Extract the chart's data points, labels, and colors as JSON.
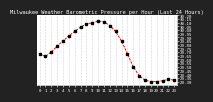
{
  "title": "Milwaukee Weather Barometric Pressure per Hour (Last 24 Hours)",
  "hours": [
    0,
    1,
    2,
    3,
    4,
    5,
    6,
    7,
    8,
    9,
    10,
    11,
    12,
    13,
    14,
    15,
    16,
    17,
    18,
    19,
    20,
    21,
    22,
    23
  ],
  "pressure": [
    29.68,
    29.64,
    29.7,
    29.78,
    29.85,
    29.92,
    29.98,
    30.04,
    30.08,
    30.1,
    30.12,
    30.11,
    30.06,
    29.98,
    29.85,
    29.68,
    29.5,
    29.38,
    29.32,
    29.3,
    29.3,
    29.31,
    29.33,
    29.32
  ],
  "bg_color": "#222222",
  "plot_bg": "#ffffff",
  "line_color": "#ff0000",
  "marker_color": "#000000",
  "ymin": 29.25,
  "ymax": 30.2,
  "ytick_step": 0.05,
  "grid_color": "#aaaaaa",
  "title_fontsize": 3.8,
  "tick_fontsize": 3.0,
  "line_width": 0.7,
  "marker_size": 1.5
}
